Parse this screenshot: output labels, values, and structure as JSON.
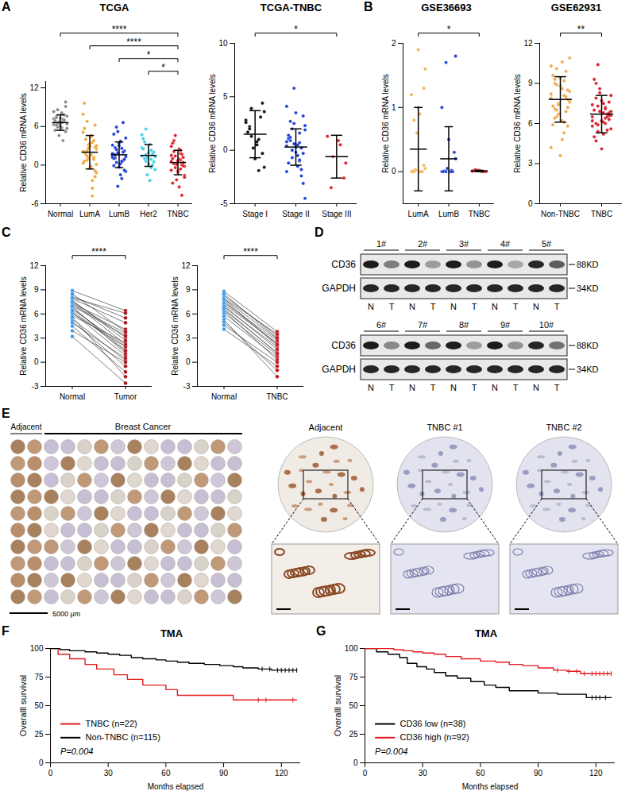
{
  "panel_letters": [
    "A",
    "B",
    "C",
    "D",
    "E",
    "F",
    "G"
  ],
  "chart_data": [
    {
      "type": "dot_plot",
      "title": "TCGA",
      "y_label": "Relative CD36 mRNA levels",
      "ylim": [
        -6,
        13
      ],
      "yticks": [
        -6,
        0,
        6,
        12
      ],
      "groups": [
        {
          "name": "Normal",
          "color": "#8c8c8c",
          "mean": 6.6,
          "sd": 1.2,
          "values": [
            7.2,
            6.8,
            5.9,
            6.4,
            8.1,
            7.5,
            5.2,
            6.0,
            6.9,
            7.8,
            4.6,
            6.3,
            7.1,
            8.6,
            5.7,
            6.6,
            7.4,
            9.8,
            6.1,
            5.4,
            7.0,
            6.7,
            8.3,
            3.8,
            6.5,
            7.6,
            5.8,
            6.2,
            9.1,
            7.3
          ]
        },
        {
          "name": "LumA",
          "color": "#f2a73b",
          "mean": 2.0,
          "sd": 2.6,
          "values": [
            2.1,
            3.5,
            0.8,
            -1.2,
            4.6,
            1.9,
            2.8,
            -0.5,
            5.7,
            1.2,
            3.1,
            0.3,
            -2.4,
            6.8,
            2.5,
            1.6,
            4.0,
            -0.9,
            2.9,
            0.6,
            3.8,
            1.1,
            7.9,
            -3.6,
            2.2,
            0.1,
            4.4,
            1.7,
            -1.8,
            3.3,
            9.6,
            0.9,
            2.6,
            5.1,
            -4.8,
            1.4,
            3.0,
            -0.2,
            2.0,
            6.2
          ]
        },
        {
          "name": "LumB",
          "color": "#1f3fd6",
          "mean": 1.6,
          "sd": 2.0,
          "values": [
            1.5,
            2.6,
            0.4,
            -1.0,
            3.7,
            1.1,
            2.2,
            -0.3,
            4.8,
            0.7,
            1.9,
            3.1,
            -2.1,
            5.9,
            1.3,
            0.2,
            2.7,
            -0.8,
            3.4,
            1.0,
            6.6,
            -3.3,
            1.8,
            0.5,
            2.4,
            4.2,
            -1.5,
            1.6,
            0.9,
            3.0,
            -0.1,
            2.0,
            5.2,
            1.2,
            0.6
          ]
        },
        {
          "name": "Her2",
          "color": "#3fd0ea",
          "mean": 1.5,
          "sd": 1.7,
          "values": [
            1.4,
            2.3,
            0.6,
            -0.7,
            3.2,
            1.0,
            2.0,
            0.2,
            4.1,
            1.7,
            -1.5,
            2.7,
            0.9,
            5.6,
            1.3,
            -2.4,
            3.6,
            0.5,
            1.9,
            2.5,
            0.0,
            1.1,
            4.7,
            -0.4,
            1.6
          ]
        },
        {
          "name": "TNBC",
          "color": "#e4202a",
          "mean": 0.4,
          "sd": 1.9,
          "values": [
            0.6,
            1.8,
            -0.4,
            -1.6,
            2.5,
            0.2,
            1.2,
            -0.9,
            3.4,
            0.0,
            -2.3,
            1.5,
            0.8,
            4.6,
            -0.2,
            -3.4,
            2.1,
            0.4,
            -1.1,
            1.0,
            -4.7,
            0.3,
            2.9,
            -0.6,
            1.4,
            -1.9,
            0.9,
            3.8,
            -0.1,
            0.7,
            -2.8,
            1.7,
            0.1,
            -0.8,
            2.3
          ]
        }
      ],
      "comparisons": [
        {
          "pair": [
            "Her2",
            "TNBC"
          ],
          "label": "*"
        },
        {
          "pair": [
            "LumB",
            "TNBC"
          ],
          "label": "*"
        },
        {
          "pair": [
            "LumA",
            "TNBC"
          ],
          "label": "****"
        },
        {
          "pair": [
            "Normal",
            "TNBC"
          ],
          "label": "****"
        }
      ]
    },
    {
      "type": "dot_plot",
      "title": "TCGA-TNBC",
      "y_label": "Relative CD36 mRNA levels",
      "ylim": [
        -5,
        10
      ],
      "yticks": [
        -5,
        0,
        5,
        10
      ],
      "groups": [
        {
          "name": "Stage I",
          "color": "#111111",
          "mean": 1.5,
          "sd": 2.2,
          "values": [
            2.8,
            1.0,
            3.9,
            -1.6,
            0.5,
            2.2,
            4.4,
            -0.8,
            1.7,
            3.1,
            0.2,
            2.6,
            -1.9,
            1.3,
            3.6,
            0.8,
            2.0,
            -0.3
          ]
        },
        {
          "name": "Stage II",
          "color": "#1f3fd6",
          "mean": 0.3,
          "sd": 1.7,
          "values": [
            0.4,
            1.6,
            -0.7,
            2.3,
            -1.5,
            0.9,
            3.2,
            -0.2,
            1.1,
            -2.4,
            0.6,
            4.1,
            -1.0,
            0.0,
            1.9,
            -0.5,
            2.7,
            -3.1,
            0.3,
            1.4,
            -1.8,
            5.8,
            0.8,
            -0.9,
            2.0,
            -4.5,
            0.5,
            1.2,
            -0.3,
            3.5,
            -1.2,
            0.2,
            2.5,
            -2.0,
            0.7
          ]
        },
        {
          "name": "Stage III",
          "color": "#e4202a",
          "mean": -0.6,
          "sd": 2.0,
          "values": [
            1.3,
            0.5,
            -0.6,
            -1.2,
            0.9,
            -3.5,
            -2.6
          ]
        }
      ],
      "comparisons": [
        {
          "pair": [
            "Stage I",
            "Stage III"
          ],
          "label": "*"
        }
      ]
    },
    {
      "type": "dot_plot",
      "title": "GSE36693",
      "y_label": "Relative CD36 mRNA levels",
      "ylim": [
        -0.5,
        2
      ],
      "yticks": [
        0,
        1,
        2
      ],
      "groups": [
        {
          "name": "LumA",
          "color": "#f4b656",
          "mean": 0.35,
          "sd": 0.65,
          "values": [
            0.0,
            0.0,
            0.02,
            0.05,
            0.0,
            0.8,
            1.3,
            1.9,
            0.01,
            0.0,
            0.6,
            1.2,
            0.0,
            0.03,
            1.6,
            0.9,
            0.0,
            0.1,
            1.0,
            0.0
          ]
        },
        {
          "name": "LumB",
          "color": "#1f3fd6",
          "mean": 0.2,
          "sd": 0.5,
          "values": [
            0.0,
            0.02,
            1.7,
            1.8,
            0.0,
            0.01,
            0.3,
            0.5,
            0.0,
            0.0,
            0.05,
            1.0,
            0.0,
            0.0,
            0.2
          ]
        },
        {
          "name": "TNBC",
          "color": "#e4202a",
          "mean": 0.01,
          "sd": 0.01,
          "values": [
            0.01,
            0.0,
            0.02,
            0.0,
            0.01,
            0.03,
            0.0,
            0.02,
            0.01,
            0.0,
            0.02,
            0.01
          ]
        }
      ],
      "comparisons": [
        {
          "pair": [
            "LumA",
            "TNBC"
          ],
          "label": "*"
        }
      ]
    },
    {
      "type": "dot_plot",
      "title": "GSE62931",
      "y_label": "Relative CD36 mRNA levels",
      "ylim": [
        0,
        12
      ],
      "yticks": [
        0,
        3,
        6,
        9,
        12
      ],
      "groups": [
        {
          "name": "Non-TNBC",
          "color": "#f2a84a",
          "mean": 7.8,
          "sd": 1.7,
          "values": [
            7.9,
            9.2,
            6.5,
            8.4,
            10.6,
            7.1,
            5.8,
            8.8,
            9.6,
            6.9,
            7.5,
            4.2,
            8.1,
            10.1,
            7.7,
            6.2,
            9.0,
            8.5,
            3.6,
            7.3,
            9.9,
            6.7,
            8.2,
            5.3,
            7.0,
            10.9,
            8.6,
            6.4,
            7.8,
            9.4,
            5.9,
            8.0,
            7.4,
            10.3,
            6.1,
            8.9,
            7.6,
            4.8,
            9.3,
            7.2
          ]
        },
        {
          "name": "TNBC",
          "color": "#d81e2a",
          "mean": 6.7,
          "sd": 1.4,
          "values": [
            6.5,
            7.2,
            5.9,
            8.1,
            6.8,
            4.7,
            7.6,
            6.2,
            9.3,
            5.5,
            6.9,
            7.4,
            6.0,
            10.4,
            6.6,
            5.2,
            7.9,
            6.3,
            4.1,
            7.0,
            6.7,
            8.6,
            5.8,
            6.4,
            7.3,
            5.6,
            6.1,
            9.0,
            6.8,
            7.7,
            5.0,
            6.5,
            8.3,
            6.2,
            7.1,
            5.4,
            6.9,
            7.5,
            6.0,
            6.6
          ]
        }
      ],
      "comparisons": [
        {
          "pair": [
            "Non-TNBC",
            "TNBC"
          ],
          "label": "**"
        }
      ]
    },
    {
      "type": "paired",
      "y_label": "Relative CD36 mRNA levels",
      "ylim": [
        -3,
        12
      ],
      "yticks": [
        -3,
        0,
        3,
        6,
        9,
        12
      ],
      "groups": [
        {
          "name": "Normal",
          "color": "#3d9be9",
          "values": [
            8.9,
            7.6,
            6.2,
            5.8,
            7.9,
            6.8,
            4.5,
            7.1,
            8.2,
            5.4,
            6.6,
            7.3,
            3.2,
            6.9,
            8.5,
            5.1,
            7.7,
            6.1,
            4.9,
            7.0,
            8.0,
            5.6,
            6.4,
            7.5,
            3.9
          ]
        },
        {
          "name": "Tumor",
          "color": "#a8121a",
          "values": [
            6.4,
            3.1,
            0.8,
            2.4,
            4.9,
            1.5,
            -1.2,
            3.6,
            5.5,
            0.2,
            2.0,
            4.1,
            -2.6,
            1.1,
            3.8,
            -0.5,
            2.7,
            1.9,
            0.5,
            3.3,
            6.1,
            -1.8,
            1.4,
            2.2,
            0.0
          ]
        }
      ],
      "comparisons": [
        {
          "pair": [
            "Normal",
            "Tumor"
          ],
          "label": "****"
        }
      ]
    },
    {
      "type": "paired",
      "y_label": "Relative CD36 mRNA levels",
      "ylim": [
        -3,
        12
      ],
      "yticks": [
        -3,
        0,
        3,
        6,
        9,
        12
      ],
      "groups": [
        {
          "name": "Normal",
          "color": "#3d9be9",
          "values": [
            8.8,
            7.9,
            6.5,
            7.2,
            5.7,
            8.3,
            6.9,
            4.1,
            7.6,
            6.1,
            8.0,
            5.3,
            7.0,
            6.4,
            7.4,
            5.0,
            8.5,
            6.7,
            7.8,
            4.6
          ]
        },
        {
          "name": "TNBC",
          "color": "#c0101a",
          "values": [
            3.8,
            2.9,
            1.2,
            2.4,
            0.6,
            3.3,
            1.9,
            -0.5,
            2.1,
            0.9,
            3.5,
            -1.8,
            1.6,
            0.3,
            2.7,
            -1.0,
            3.0,
            1.1,
            2.2,
            0.0
          ]
        }
      ],
      "comparisons": [
        {
          "pair": [
            "Normal",
            "TNBC"
          ],
          "label": "****"
        }
      ]
    },
    {
      "type": "survival",
      "title": "TMA",
      "x_label": "Months elapsed",
      "y_label": "Overalll survival",
      "xlim": [
        0,
        130
      ],
      "xticks": [
        0,
        30,
        60,
        90,
        120
      ],
      "ylim": [
        0,
        100
      ],
      "yticks": [
        0,
        25,
        50,
        75,
        100
      ],
      "legend": "bottom-left",
      "annotations": [
        "P=0.004"
      ],
      "series": [
        {
          "name": "TNBC (n=22)",
          "color": "#e41a1c",
          "x": [
            0,
            4,
            10,
            18,
            24,
            33,
            40,
            48,
            60,
            66,
            95,
            128
          ],
          "values": [
            100,
            95,
            91,
            86,
            82,
            77,
            73,
            68,
            64,
            59,
            55,
            55
          ],
          "censored": [
            108,
            112,
            126
          ]
        },
        {
          "name": "Non-TNBC (n=115)",
          "color": "#000000",
          "x": [
            0,
            5,
            10,
            18,
            24,
            30,
            36,
            42,
            48,
            55,
            60,
            66,
            72,
            80,
            88,
            95,
            100,
            108,
            115,
            128
          ],
          "values": [
            100,
            99,
            98,
            97,
            96,
            95,
            94,
            92,
            91,
            90,
            89,
            88,
            87,
            86,
            85,
            84,
            83,
            82,
            81,
            81
          ],
          "censored": [
            110,
            114,
            118,
            120,
            122,
            124,
            126,
            128
          ]
        }
      ]
    },
    {
      "type": "survival",
      "title": "TMA",
      "x_label": "Months elapsed",
      "y_label": "Overalll survival",
      "xlim": [
        0,
        130
      ],
      "xticks": [
        0,
        30,
        60,
        90,
        120
      ],
      "ylim": [
        0,
        100
      ],
      "yticks": [
        0,
        25,
        50,
        75,
        100
      ],
      "legend": "bottom-left",
      "annotations": [
        "P=0.004"
      ],
      "series": [
        {
          "name": "CD36 low (n=38)",
          "color": "#000000",
          "x": [
            0,
            6,
            12,
            18,
            22,
            27,
            32,
            36,
            42,
            48,
            55,
            62,
            68,
            75,
            90,
            100,
            115,
            128
          ],
          "values": [
            100,
            97,
            95,
            92,
            87,
            84,
            82,
            79,
            76,
            74,
            71,
            68,
            66,
            63,
            61,
            60,
            57,
            57
          ],
          "censored": [
            118,
            120,
            122,
            125
          ]
        },
        {
          "name": "CD36 high (n=92)",
          "color": "#e41a1c",
          "x": [
            0,
            15,
            20,
            25,
            30,
            36,
            42,
            50,
            60,
            68,
            75,
            82,
            90,
            98,
            105,
            112,
            128
          ],
          "values": [
            100,
            99,
            98,
            97,
            96,
            95,
            93,
            91,
            89,
            88,
            86,
            85,
            83,
            81,
            80,
            78,
            78
          ],
          "censored": [
            100,
            106,
            110,
            114,
            118,
            120,
            122,
            124,
            126,
            128
          ]
        }
      ]
    }
  ],
  "blot": {
    "samples": [
      "1#",
      "2#",
      "3#",
      "4#",
      "5#",
      "6#",
      "7#",
      "8#",
      "9#",
      "10#"
    ],
    "lanes": [
      "N",
      "T"
    ],
    "proteins": [
      {
        "name": "CD36",
        "size": "88KD",
        "N": [
          0.95,
          0.95,
          0.95,
          0.95,
          0.9,
          0.95,
          0.95,
          0.95,
          0.95,
          0.9
        ],
        "T": [
          0.5,
          0.35,
          0.4,
          0.3,
          0.65,
          0.45,
          0.6,
          0.35,
          0.4,
          0.55
        ]
      },
      {
        "name": "GAPDH",
        "size": "34KD",
        "N": [
          0.9,
          0.9,
          0.9,
          0.9,
          0.9,
          0.9,
          0.9,
          0.9,
          0.9,
          0.9
        ],
        "T": [
          0.9,
          0.9,
          0.9,
          0.9,
          0.9,
          0.9,
          0.9,
          0.9,
          0.9,
          0.9
        ]
      }
    ]
  },
  "tma": {
    "overview_labels": [
      "Adjacent",
      "Breast Cancer"
    ],
    "scale_bar": "5000 μm",
    "cores": [
      "Adjacent",
      "TNBC #1",
      "TNBC #2"
    ]
  }
}
